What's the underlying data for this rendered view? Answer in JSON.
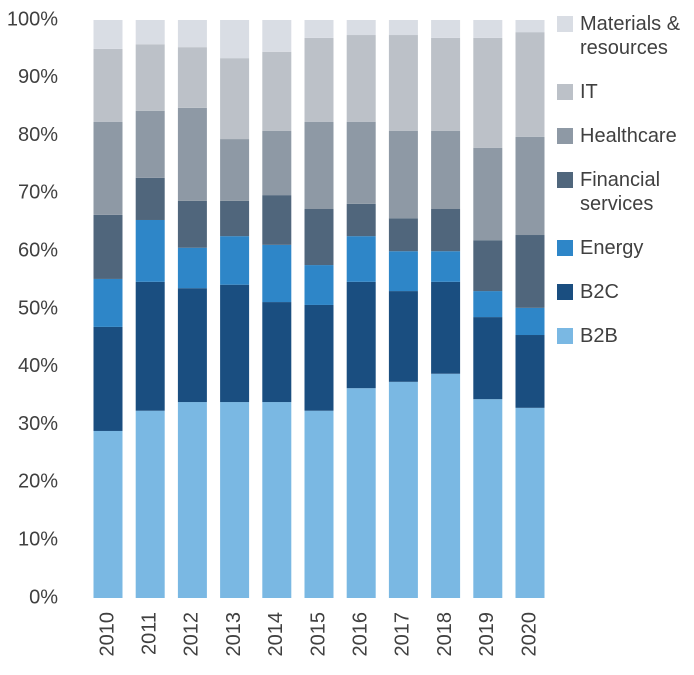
{
  "chart_data": {
    "type": "stacked_bar",
    "categories": [
      "2010",
      "2011",
      "2012",
      "2013",
      "2014",
      "2015",
      "2016",
      "2017",
      "2018",
      "2019",
      "2020"
    ],
    "series": [
      {
        "name": "B2B",
        "color": "#7ab8e3",
        "values": [
          28.9,
          32.4,
          33.9,
          33.9,
          33.9,
          32.4,
          36.3,
          37.4,
          38.8,
          34.4,
          32.9
        ]
      },
      {
        "name": "B2C",
        "color": "#1a4e80",
        "values": [
          18.0,
          22.3,
          19.7,
          20.3,
          17.3,
          18.3,
          18.4,
          15.7,
          15.9,
          14.2,
          12.6
        ]
      },
      {
        "name": "Energy",
        "color": "#2e86c8",
        "values": [
          8.3,
          10.7,
          7.0,
          8.4,
          9.9,
          6.9,
          7.9,
          6.9,
          5.3,
          4.5,
          4.7
        ]
      },
      {
        "name": "Financial services",
        "color": "#50667c",
        "values": [
          11.1,
          7.3,
          8.1,
          6.1,
          8.6,
          9.7,
          5.6,
          5.7,
          7.3,
          8.8,
          12.6
        ]
      },
      {
        "name": "Healthcare",
        "color": "#8e99a5",
        "values": [
          16.1,
          11.6,
          16.1,
          10.7,
          11.1,
          15.1,
          14.2,
          15.1,
          13.5,
          16.0,
          17.0
        ]
      },
      {
        "name": "IT",
        "color": "#bcc1c8",
        "values": [
          12.6,
          11.5,
          10.5,
          14.0,
          13.7,
          14.5,
          15.0,
          16.6,
          16.1,
          19.0,
          18.1
        ]
      },
      {
        "name": "Materials & resources",
        "color": "#d9dde4",
        "values": [
          5.0,
          4.2,
          4.7,
          6.6,
          5.5,
          3.1,
          2.6,
          2.6,
          3.1,
          3.1,
          2.1
        ]
      }
    ],
    "ylim": [
      0,
      100
    ],
    "yticks": [
      {
        "value": 0,
        "label": "0%"
      },
      {
        "value": 10,
        "label": "10%"
      },
      {
        "value": 20,
        "label": "20%"
      },
      {
        "value": 30,
        "label": "30%"
      },
      {
        "value": 40,
        "label": "40%"
      },
      {
        "value": 50,
        "label": "50%"
      },
      {
        "value": 60,
        "label": "60%"
      },
      {
        "value": 70,
        "label": "70%"
      },
      {
        "value": 80,
        "label": "80%"
      },
      {
        "value": 90,
        "label": "90%"
      },
      {
        "value": 100,
        "label": "100%"
      }
    ],
    "legend": "right"
  }
}
